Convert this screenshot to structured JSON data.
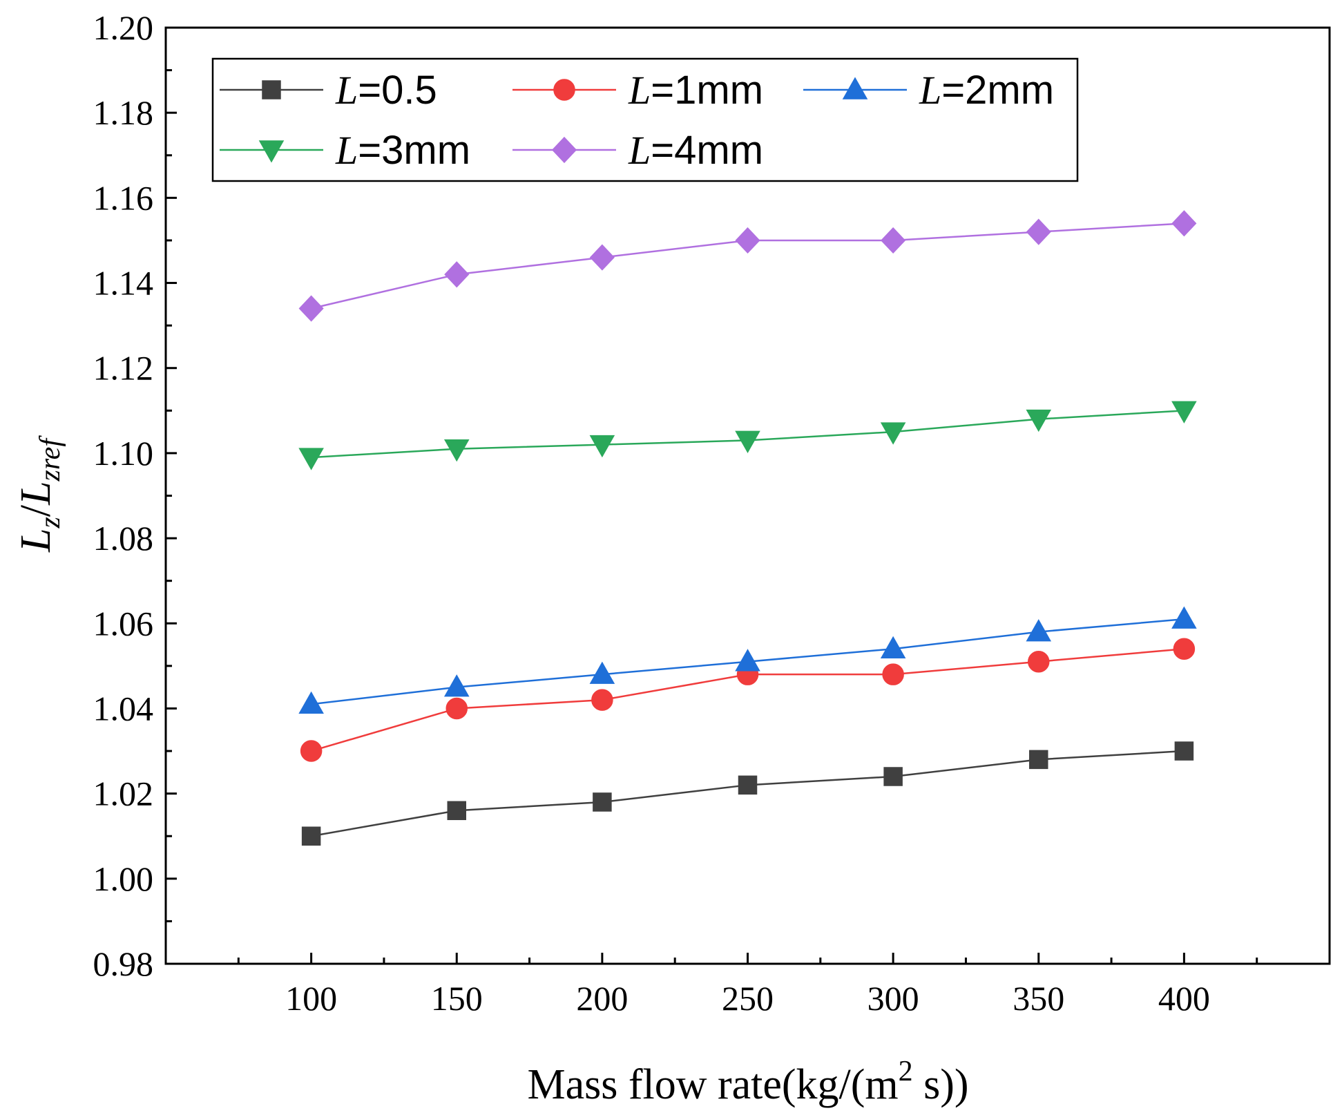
{
  "chart_data": {
    "type": "line",
    "title": "",
    "xlabel": {
      "main": "Mass flow rate(kg/(m",
      "sup": "2",
      "tail": " s))"
    },
    "ylabel": {
      "L1": "L",
      "sub1": "z",
      "slash": "/",
      "L2": "L",
      "sub2": "zref"
    },
    "xlim": [
      50,
      450
    ],
    "ylim": [
      0.98,
      1.2
    ],
    "xticks": [
      100,
      150,
      200,
      250,
      300,
      350,
      400
    ],
    "xtick_labels": [
      "100",
      "150",
      "200",
      "250",
      "300",
      "350",
      "400"
    ],
    "yticks": [
      0.98,
      1.0,
      1.02,
      1.04,
      1.06,
      1.08,
      1.1,
      1.12,
      1.14,
      1.16,
      1.18,
      1.2
    ],
    "ytick_labels": [
      "0.98",
      "1.00",
      "1.02",
      "1.04",
      "1.06",
      "1.08",
      "1.10",
      "1.12",
      "1.14",
      "1.16",
      "1.18",
      "1.20"
    ],
    "x": [
      100,
      150,
      200,
      250,
      300,
      350,
      400
    ],
    "legend_position": "top-left",
    "series": [
      {
        "name_prefix": "L",
        "name_suffix": "=0.5",
        "color": "#404040",
        "marker": "square",
        "values": [
          1.01,
          1.016,
          1.018,
          1.022,
          1.024,
          1.028,
          1.03
        ]
      },
      {
        "name_prefix": "L",
        "name_suffix": "=1mm",
        "color": "#f03c3c",
        "marker": "circle",
        "values": [
          1.03,
          1.04,
          1.042,
          1.048,
          1.048,
          1.051,
          1.054
        ]
      },
      {
        "name_prefix": "L",
        "name_suffix": "=2mm",
        "color": "#1f6fd8",
        "marker": "triangle-up",
        "values": [
          1.041,
          1.045,
          1.048,
          1.051,
          1.054,
          1.058,
          1.061
        ]
      },
      {
        "name_prefix": "L",
        "name_suffix": "=3mm",
        "color": "#2aa85a",
        "marker": "triangle-down",
        "values": [
          1.099,
          1.101,
          1.102,
          1.103,
          1.105,
          1.108,
          1.11
        ]
      },
      {
        "name_prefix": "L",
        "name_suffix": "=4mm",
        "color": "#b070e0",
        "marker": "diamond",
        "values": [
          1.134,
          1.142,
          1.146,
          1.15,
          1.15,
          1.152,
          1.154
        ]
      }
    ]
  }
}
